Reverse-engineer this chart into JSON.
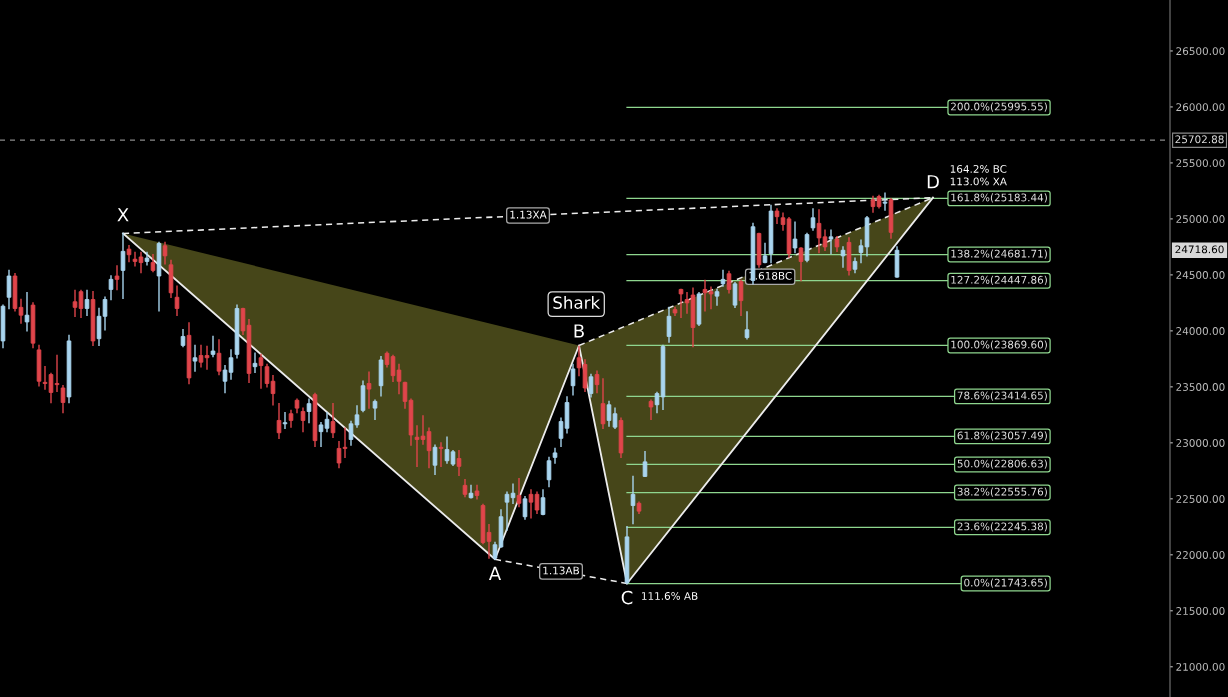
{
  "chart_data": {
    "type": "candlestick",
    "categories": [
      null,
      null,
      null,
      null,
      null,
      null,
      null,
      null,
      null,
      null,
      null,
      null,
      null,
      null,
      null,
      null,
      null,
      null,
      null,
      null,
      null,
      null,
      null,
      null,
      null,
      null,
      null,
      null,
      null,
      null,
      null,
      null,
      null,
      null,
      null,
      null,
      null,
      null,
      null,
      null,
      null,
      null,
      null,
      null,
      null,
      null,
      null,
      null,
      null,
      null,
      null,
      null,
      null,
      null,
      null,
      null,
      null,
      null,
      null,
      null,
      null,
      null,
      null,
      null,
      null,
      null,
      null,
      null,
      null,
      null,
      null,
      null,
      null,
      null,
      null,
      null,
      null,
      null,
      null,
      null,
      null,
      null,
      null,
      null,
      null,
      null,
      null,
      null,
      null,
      null,
      null,
      null,
      null,
      null,
      null,
      null,
      null,
      null,
      null,
      null,
      null,
      null,
      null,
      null,
      null,
      null,
      null,
      null,
      null,
      null,
      null,
      null,
      null,
      null,
      null,
      null,
      null,
      null,
      null,
      null,
      null,
      null,
      null,
      null,
      null,
      null,
      null,
      null,
      null,
      null,
      null,
      null,
      null,
      null,
      null,
      null,
      null,
      null,
      null,
      null,
      null,
      null,
      null,
      null,
      null,
      null,
      null,
      null,
      null,
      null,
      null,
      null,
      null,
      null,
      null,
      null,
      null,
      null,
      null,
      null,
      null,
      null,
      null,
      null,
      null,
      null,
      null,
      null,
      null,
      null,
      null,
      null,
      null,
      null,
      null,
      null,
      null,
      null,
      null,
      null,
      null,
      null,
      null,
      null,
      null,
      null,
      null,
      null,
      null,
      null,
      null,
      null,
      null,
      null,
      null
    ],
    "ohlc": [
      [
        23910,
        24230,
        23850,
        24220
      ],
      [
        24300,
        24540,
        24200,
        24490
      ],
      [
        24490,
        24510,
        24180,
        24200
      ],
      [
        24210,
        24280,
        24070,
        24140
      ],
      [
        24080,
        24340,
        24000,
        24140
      ],
      [
        24230,
        24250,
        23850,
        23890
      ],
      [
        23830,
        23870,
        23510,
        23550
      ],
      [
        23540,
        23680,
        23480,
        23530
      ],
      [
        23610,
        23620,
        23360,
        23450
      ],
      [
        23530,
        23780,
        23460,
        23520
      ],
      [
        23490,
        23510,
        23270,
        23360
      ],
      [
        23410,
        23960,
        23360,
        23910
      ],
      [
        24260,
        24360,
        24130,
        24210
      ],
      [
        24350,
        24360,
        24120,
        24200
      ],
      [
        24200,
        24360,
        24140,
        24280
      ],
      [
        24280,
        24350,
        23870,
        23910
      ],
      [
        23930,
        24200,
        23870,
        24130
      ],
      [
        24130,
        24300,
        24010,
        24280
      ],
      [
        24370,
        24490,
        24280,
        24460
      ],
      [
        24490,
        24580,
        24370,
        24460
      ],
      [
        24540,
        24870,
        24290,
        24710
      ],
      [
        24730,
        24760,
        24620,
        24680
      ],
      [
        24640,
        24700,
        24580,
        24620
      ],
      [
        24660,
        24700,
        24520,
        24610
      ],
      [
        24620,
        24700,
        24590,
        24650
      ],
      [
        24610,
        24680,
        24530,
        24540
      ],
      [
        24490,
        24790,
        24180,
        24780
      ],
      [
        24760,
        24790,
        24600,
        24670
      ],
      [
        24590,
        24630,
        24300,
        24340
      ],
      [
        24300,
        24400,
        24140,
        24200
      ],
      [
        23870,
        24010,
        23860,
        23950
      ],
      [
        23960,
        24070,
        23530,
        23580
      ],
      [
        23730,
        23870,
        23640,
        23760
      ],
      [
        23780,
        23870,
        23680,
        23720
      ],
      [
        23780,
        23860,
        23660,
        23760
      ],
      [
        23790,
        23950,
        23770,
        23820
      ],
      [
        23800,
        23920,
        23610,
        23640
      ],
      [
        23550,
        23690,
        23450,
        23650
      ],
      [
        23630,
        23830,
        23570,
        23760
      ],
      [
        23790,
        24230,
        23760,
        24200
      ],
      [
        24200,
        24200,
        23970,
        24000
      ],
      [
        24050,
        24100,
        23540,
        23620
      ],
      [
        23680,
        23800,
        23630,
        23710
      ],
      [
        23760,
        23790,
        23490,
        23690
      ],
      [
        23680,
        23700,
        23500,
        23530
      ],
      [
        23550,
        23600,
        23340,
        23440
      ],
      [
        23200,
        23350,
        23040,
        23090
      ],
      [
        23170,
        23270,
        23130,
        23180
      ],
      [
        23260,
        23290,
        23140,
        23200
      ],
      [
        23380,
        23390,
        23270,
        23310
      ],
      [
        23280,
        23310,
        23100,
        23200
      ],
      [
        23280,
        23390,
        23180,
        23350
      ],
      [
        23430,
        23440,
        22970,
        23020
      ],
      [
        23100,
        23180,
        22970,
        23160
      ],
      [
        23130,
        23270,
        23100,
        23210
      ],
      [
        23190,
        23350,
        23050,
        23090
      ],
      [
        22950,
        23010,
        22780,
        22820
      ],
      [
        22960,
        23130,
        22870,
        22950
      ],
      [
        23030,
        23190,
        22980,
        23170
      ],
      [
        23160,
        23330,
        23140,
        23250
      ],
      [
        23290,
        23550,
        23280,
        23510
      ],
      [
        23530,
        23630,
        23310,
        23480
      ],
      [
        23310,
        23380,
        23210,
        23370
      ],
      [
        23510,
        23770,
        23420,
        23740
      ],
      [
        23800,
        23810,
        23680,
        23700
      ],
      [
        23770,
        23780,
        23550,
        23600
      ],
      [
        23650,
        23700,
        23440,
        23550
      ],
      [
        23540,
        23540,
        23310,
        23370
      ],
      [
        23380,
        23390,
        22980,
        23070
      ],
      [
        23050,
        23150,
        22790,
        23030
      ],
      [
        23060,
        23240,
        22990,
        23030
      ],
      [
        23100,
        23130,
        22780,
        22930
      ],
      [
        22800,
        22980,
        22720,
        22960
      ],
      [
        22960,
        23000,
        22790,
        22950
      ],
      [
        22840,
        23050,
        22820,
        22940
      ],
      [
        22810,
        22930,
        22800,
        22920
      ],
      [
        22860,
        22930,
        22710,
        22790
      ],
      [
        22620,
        22670,
        22520,
        22540
      ],
      [
        22510,
        22620,
        22510,
        22550
      ],
      [
        22570,
        22620,
        22500,
        22530
      ],
      [
        22440,
        22450,
        22100,
        22110
      ],
      [
        22200,
        22270,
        21970,
        22120
      ],
      [
        21970,
        22110,
        21960,
        22090
      ],
      [
        22070,
        22400,
        22070,
        22340
      ],
      [
        22470,
        22560,
        22220,
        22540
      ],
      [
        22510,
        22630,
        22460,
        22550
      ],
      [
        22530,
        22680,
        22430,
        22460
      ],
      [
        22340,
        22520,
        22320,
        22500
      ],
      [
        22540,
        22580,
        22330,
        22470
      ],
      [
        22540,
        22560,
        22370,
        22400
      ],
      [
        22360,
        22580,
        22360,
        22510
      ],
      [
        22670,
        22870,
        22610,
        22840
      ],
      [
        22870,
        22950,
        22820,
        22910
      ],
      [
        23040,
        23220,
        22970,
        23190
      ],
      [
        23130,
        23410,
        23090,
        23360
      ],
      [
        23510,
        23700,
        23430,
        23660
      ],
      [
        23760,
        23860,
        23600,
        23670
      ],
      [
        23700,
        23740,
        23460,
        23490
      ],
      [
        23440,
        23610,
        23410,
        23590
      ],
      [
        23610,
        23640,
        23450,
        23520
      ],
      [
        23350,
        23570,
        23130,
        23170
      ],
      [
        23200,
        23370,
        23150,
        23340
      ],
      [
        23140,
        23310,
        23130,
        23260
      ],
      [
        23200,
        23220,
        22870,
        22910
      ],
      [
        21750,
        22250,
        21743.65,
        22160
      ],
      [
        22440,
        22700,
        22280,
        22540
      ],
      [
        22460,
        22470,
        22370,
        22390
      ],
      [
        22700,
        22920,
        22700,
        22830
      ],
      [
        23370,
        23380,
        23210,
        23320
      ],
      [
        23340,
        23450,
        23270,
        23440
      ],
      [
        23410,
        23870,
        23300,
        23860
      ],
      [
        23950,
        24210,
        23900,
        24130
      ],
      [
        24190,
        24210,
        24140,
        24160
      ],
      [
        24370,
        24370,
        24120,
        24330
      ],
      [
        24280,
        24340,
        24160,
        24250
      ],
      [
        24320,
        24380,
        23860,
        24030
      ],
      [
        24060,
        24340,
        24050,
        24330
      ],
      [
        24370,
        24450,
        24180,
        24340
      ],
      [
        24350,
        24390,
        24200,
        24330
      ],
      [
        24310,
        24370,
        24230,
        24350
      ],
      [
        24420,
        24540,
        24400,
        24460
      ],
      [
        24510,
        24530,
        24340,
        24370
      ],
      [
        24230,
        24430,
        24210,
        24420
      ],
      [
        24440,
        24450,
        24140,
        24270
      ],
      [
        23940,
        24170,
        23930,
        24010
      ],
      [
        24450,
        24960,
        24420,
        24930
      ],
      [
        24870,
        24870,
        24570,
        24590
      ],
      [
        24610,
        24780,
        24610,
        24670
      ],
      [
        24690,
        25120,
        24610,
        25070
      ],
      [
        25070,
        25090,
        24960,
        25020
      ],
      [
        25010,
        25050,
        24900,
        24950
      ],
      [
        25000,
        25010,
        24660,
        24690
      ],
      [
        24740,
        24970,
        24700,
        24820
      ],
      [
        24740,
        24740,
        24450,
        24620
      ],
      [
        24630,
        24870,
        24620,
        24860
      ],
      [
        24920,
        25090,
        24900,
        25010
      ],
      [
        24960,
        25080,
        24700,
        24830
      ],
      [
        24840,
        24900,
        24720,
        24750
      ],
      [
        24820,
        24900,
        24690,
        24840
      ],
      [
        24820,
        24840,
        24710,
        24750
      ],
      [
        24670,
        24750,
        24570,
        24720
      ],
      [
        24790,
        24830,
        24500,
        24540
      ],
      [
        24550,
        24650,
        24520,
        24620
      ],
      [
        24700,
        24810,
        24610,
        24760
      ],
      [
        24750,
        25020,
        24670,
        25010
      ],
      [
        25170,
        25200,
        25060,
        25110
      ],
      [
        25200,
        25210,
        25100,
        25110
      ],
      [
        25140,
        25230,
        25080,
        25150
      ],
      [
        25170,
        25180,
        24830,
        24880
      ],
      [
        24480,
        24750,
        24480,
        24720
      ],
      null,
      null,
      null,
      null,
      null,
      null,
      null,
      null,
      null,
      null,
      null,
      null,
      null,
      null,
      null,
      null,
      null,
      null,
      null,
      null,
      null,
      null,
      null,
      null,
      null,
      null,
      null,
      null,
      null,
      null,
      null,
      null,
      null,
      null,
      null,
      null,
      null,
      null,
      null,
      null,
      null,
      null,
      null,
      null,
      null
    ],
    "colors": [
      "#a9d5ef",
      "#a9d5ef",
      "#e0454b",
      "#e0454b",
      "#a9d5ef",
      "#e0454b",
      "#e0454b",
      "#e0454b",
      "#e0454b",
      "#e0454b",
      "#e0454b",
      "#a9d5ef",
      "#e0454b",
      "#e0454b",
      "#a9d5ef",
      "#e0454b",
      "#a9d5ef",
      "#a9d5ef",
      "#a9d5ef",
      "#e0454b",
      "#a9d5ef",
      "#e0454b",
      "#e0454b",
      "#e0454b",
      "#a9d5ef",
      "#e0454b",
      "#a9d5ef",
      "#e0454b",
      "#e0454b",
      "#e0454b",
      "#a9d5ef",
      "#e0454b",
      "#a9d5ef",
      "#e0454b",
      "#e0454b",
      "#a9d5ef",
      "#e0454b",
      "#a9d5ef",
      "#a9d5ef",
      "#a9d5ef",
      "#e0454b",
      "#e0454b",
      "#a9d5ef",
      "#e0454b",
      "#e0454b",
      "#e0454b",
      "#e0454b",
      "#a9d5ef",
      "#e0454b",
      "#e0454b",
      "#e0454b",
      "#a9d5ef",
      "#e0454b",
      "#a9d5ef",
      "#a9d5ef",
      "#e0454b",
      "#e0454b",
      "#e0454b",
      "#a9d5ef",
      "#a9d5ef",
      "#a9d5ef",
      "#e0454b",
      "#a9d5ef",
      "#a9d5ef",
      "#e0454b",
      "#e0454b",
      "#e0454b",
      "#e0454b",
      "#e0454b",
      "#e0454b",
      "#e0454b",
      "#e0454b",
      "#a9d5ef",
      "#e0454b",
      "#a9d5ef",
      "#a9d5ef",
      "#e0454b",
      "#e0454b",
      "#a9d5ef",
      "#e0454b",
      "#e0454b",
      "#e0454b",
      "#a9d5ef",
      "#a9d5ef",
      "#a9d5ef",
      "#a9d5ef",
      "#e0454b",
      "#a9d5ef",
      "#e0454b",
      "#e0454b",
      "#a9d5ef",
      "#a9d5ef",
      "#a9d5ef",
      "#a9d5ef",
      "#a9d5ef",
      "#a9d5ef",
      "#e0454b",
      "#e0454b",
      "#a9d5ef",
      "#e0454b",
      "#e0454b",
      "#a9d5ef",
      "#a9d5ef",
      "#e0454b",
      "#a9d5ef",
      "#a9d5ef",
      "#e0454b",
      "#a9d5ef",
      "#e0454b",
      "#a9d5ef",
      "#a9d5ef",
      "#a9d5ef",
      "#e0454b",
      "#e0454b",
      "#e0454b",
      "#e0454b",
      "#a9d5ef",
      "#e0454b",
      "#e0454b",
      "#a9d5ef",
      "#a9d5ef",
      "#e0454b",
      "#a9d5ef",
      "#e0454b",
      "#a9d5ef",
      "#a9d5ef",
      "#e0454b",
      "#a9d5ef",
      "#a9d5ef",
      "#e0454b",
      "#e0454b",
      "#e0454b",
      "#a9d5ef",
      "#e0454b",
      "#a9d5ef",
      "#a9d5ef",
      "#e0454b",
      "#e0454b",
      "#a9d5ef",
      "#e0454b",
      "#a9d5ef",
      "#e0454b",
      "#a9d5ef",
      "#a9d5ef",
      "#a9d5ef",
      "#e0454b",
      "#e0454b",
      "#a9d5ef",
      "#e0454b",
      "#a9d5ef",
      null,
      null,
      null,
      null,
      null,
      null,
      null,
      null,
      null,
      null,
      null,
      null,
      null,
      null,
      null,
      null,
      null,
      null,
      null,
      null,
      null,
      null,
      null,
      null,
      null,
      null,
      null,
      null,
      null,
      null,
      null,
      null,
      null,
      null,
      null,
      null,
      null,
      null,
      null,
      null,
      null,
      null,
      null,
      null,
      null
    ],
    "series": [
      {
        "type": "line",
        "color": "#ececec",
        "values": [
          null,
          null,
          null,
          null,
          null,
          null,
          null,
          null,
          null,
          null,
          null,
          null,
          null,
          null,
          null,
          null,
          null,
          null,
          null,
          null,
          24870,
          null,
          null,
          null,
          null,
          null,
          null,
          null,
          null,
          null,
          null,
          null,
          null,
          null,
          null,
          null,
          null,
          null,
          null,
          null,
          null,
          null,
          null,
          null,
          null,
          null,
          null,
          null,
          null,
          null,
          null,
          null,
          null,
          null,
          null,
          null,
          null,
          null,
          null,
          null,
          null,
          null,
          null,
          null,
          null,
          null,
          null,
          null,
          null,
          null,
          null,
          null,
          null,
          null,
          null,
          null,
          null,
          null,
          null,
          null,
          null,
          null,
          21960,
          null,
          null,
          null,
          null,
          null,
          null,
          null,
          null,
          null,
          null,
          null,
          null,
          null,
          23869.6,
          null,
          null,
          null,
          null,
          null,
          null,
          null,
          21743.65,
          null,
          null,
          null,
          null,
          null,
          null,
          null,
          null,
          null,
          null,
          null,
          null,
          null,
          null,
          null,
          null,
          null,
          null,
          null,
          null,
          null,
          null,
          null,
          null,
          null,
          null,
          null,
          null,
          null,
          null,
          null,
          null,
          null,
          null,
          null,
          null,
          null,
          null,
          null,
          null,
          null,
          null,
          null,
          null,
          null,
          null,
          null,
          null,
          null,
          null,
          25190,
          null,
          null,
          null,
          null,
          null,
          null,
          null,
          null,
          null,
          null,
          null,
          null,
          null,
          null,
          null,
          null,
          null,
          null,
          null,
          null,
          null,
          null,
          null,
          null,
          null,
          null,
          null,
          null,
          null,
          null,
          null,
          null,
          null,
          null,
          null,
          null,
          null,
          null,
          null
        ]
      }
    ],
    "ylim": [
      20730,
      26955
    ],
    "yticks": [
      {
        "value": 21000,
        "label": "21000.00"
      },
      {
        "value": 21500,
        "label": "21500.00"
      },
      {
        "value": 22000,
        "label": "22000.00"
      },
      {
        "value": 22500,
        "label": "22500.00"
      },
      {
        "value": 23000,
        "label": "23000.00"
      },
      {
        "value": 23500,
        "label": "23500.00"
      },
      {
        "value": 24000,
        "label": "24000.00"
      },
      {
        "value": 24500,
        "label": "24500.00"
      },
      {
        "value": 25000,
        "label": "25000.00"
      },
      {
        "value": 25500,
        "label": "25500.00"
      },
      {
        "value": 26000,
        "label": "26000.00"
      },
      {
        "value": 26500,
        "label": "26500.00"
      }
    ],
    "tick_labels": "y",
    "ref_lines": [
      {
        "axis": "y",
        "value": 25995.55,
        "label": "200.0%(25995.55)",
        "color": "#8fd68f",
        "line_style": "solid"
      },
      {
        "axis": "y",
        "value": 25183.44,
        "label": "161.8%(25183.44)",
        "color": "#8fd68f",
        "line_style": "solid"
      },
      {
        "axis": "y",
        "value": 24681.71,
        "label": "138.2%(24681.71)",
        "color": "#8fd68f",
        "line_style": "solid"
      },
      {
        "axis": "y",
        "value": 24447.86,
        "label": "127.2%(24447.86)",
        "color": "#8fd68f",
        "line_style": "solid"
      },
      {
        "axis": "y",
        "value": 23869.6,
        "label": "100.0%(23869.60)",
        "color": "#8fd68f",
        "line_style": "solid"
      },
      {
        "axis": "y",
        "value": 23414.65,
        "label": "78.6%(23414.65)",
        "color": "#8fd68f",
        "line_style": "solid"
      },
      {
        "axis": "y",
        "value": 23057.49,
        "label": "61.8%(23057.49)",
        "color": "#8fd68f",
        "line_style": "solid"
      },
      {
        "axis": "y",
        "value": 22806.63,
        "label": "50.0%(22806.63)",
        "color": "#8fd68f",
        "line_style": "solid"
      },
      {
        "axis": "y",
        "value": 22555.76,
        "label": "38.2%(22555.76)",
        "color": "#8fd68f",
        "line_style": "solid"
      },
      {
        "axis": "y",
        "value": 22245.38,
        "label": "23.6%(22245.38)",
        "color": "#8fd68f",
        "line_style": "solid"
      },
      {
        "axis": "y",
        "value": 21743.65,
        "label": "0.0%(21743.65)",
        "color": "#8fd68f",
        "line_style": "solid"
      },
      {
        "axis": "y",
        "value": 25702.88,
        "label": "25702.88",
        "color": "#8a8a8a",
        "line_style": "dashed"
      }
    ],
    "annotations": [
      "X",
      "A",
      "B",
      "C",
      "D",
      "Shark",
      "1.13XA",
      "1.13AB",
      "1.618BC",
      "164.2% BC",
      "113.0% XA",
      "111.6% AB",
      "24718.60"
    ]
  }
}
